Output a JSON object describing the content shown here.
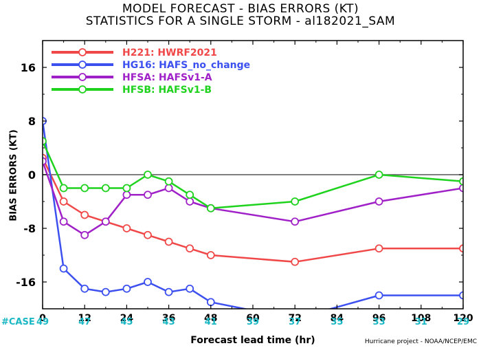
{
  "chart_data": {
    "type": "line",
    "title": "MODEL FORECAST - BIAS ERRORS (KT)",
    "subtitle": "STATISTICS FOR A SINGLE STORM - al182021_SAM",
    "xlabel": "Forecast lead time (hr)",
    "ylabel": "BIAS ERRORS (KT)",
    "xlim": [
      0,
      120
    ],
    "ylim": [
      -20,
      20
    ],
    "x_ticks": [
      0,
      12,
      24,
      36,
      48,
      60,
      72,
      84,
      96,
      108,
      120
    ],
    "y_ticks": [
      -16,
      -8,
      0,
      8,
      16
    ],
    "zero_line": true,
    "legend_position": "top-left",
    "case_label": "#CASE",
    "case_counts": [
      "49",
      "47",
      "45",
      "43",
      "41",
      "39",
      "37",
      "35",
      "33",
      "31",
      "29"
    ],
    "case_color": "#1ab8c4",
    "credit": "Hurricane project - NOAA/NCEP/EMC",
    "series": [
      {
        "name": "H221: HWRF2021",
        "color": "#f04848",
        "x": [
          0,
          6,
          12,
          18,
          24,
          30,
          36,
          42,
          48,
          72,
          96,
          120
        ],
        "y": [
          2.5,
          -4,
          -6,
          -7,
          -8,
          -9,
          -10,
          -11,
          -12,
          -13,
          -11,
          -11
        ]
      },
      {
        "name": "HG16: HAFS_no_change",
        "color": "#3c50f0",
        "x": [
          0,
          6,
          12,
          18,
          24,
          30,
          36,
          42,
          48,
          72,
          96,
          120
        ],
        "y": [
          8,
          -14,
          -17,
          -17.5,
          -17,
          -16,
          -17.5,
          -17,
          -19,
          -21.5,
          -18,
          -18
        ]
      },
      {
        "name": "HFSA: HAFSv1-A",
        "color": "#a020c8",
        "x": [
          0,
          6,
          12,
          18,
          24,
          30,
          36,
          42,
          48,
          72,
          96,
          120
        ],
        "y": [
          2,
          -7,
          -9,
          -7,
          -3,
          -3,
          -2,
          -4,
          -5,
          -7,
          -4,
          -2
        ]
      },
      {
        "name": "HFSB: HAFSv1-B",
        "color": "#1ed21e",
        "x": [
          0,
          6,
          12,
          18,
          24,
          30,
          36,
          42,
          48,
          72,
          96,
          120
        ],
        "y": [
          5,
          -2,
          -2,
          -2,
          -2,
          0,
          -1,
          -3,
          -5,
          -4,
          0,
          -1
        ]
      }
    ]
  }
}
